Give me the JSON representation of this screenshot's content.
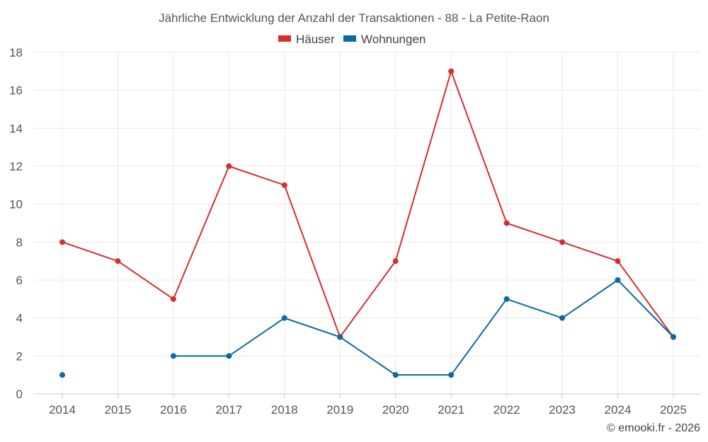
{
  "chart_data": {
    "type": "line",
    "title": "Jährliche Entwicklung der Anzahl der Transaktionen - 88 - La Petite-Raon",
    "categories": [
      "2014",
      "2015",
      "2016",
      "2017",
      "2018",
      "2019",
      "2020",
      "2021",
      "2022",
      "2023",
      "2024",
      "2025"
    ],
    "series": [
      {
        "name": "Häuser",
        "color": "#d32f2f",
        "values": [
          8,
          7,
          5,
          12,
          11,
          3,
          7,
          17,
          9,
          8,
          7,
          3
        ]
      },
      {
        "name": "Wohnungen",
        "color": "#0a6aa1",
        "values": [
          1,
          null,
          2,
          2,
          4,
          3,
          1,
          1,
          5,
          4,
          6,
          3
        ]
      }
    ],
    "yticks": [
      "0",
      "2",
      "4",
      "6",
      "8",
      "10",
      "12",
      "14",
      "16",
      "18"
    ],
    "ylim": [
      0,
      18
    ],
    "xlabel": "",
    "ylabel": "",
    "legend_position": "top-center",
    "grid": true
  },
  "credit": "© emooki.fr - 2026"
}
